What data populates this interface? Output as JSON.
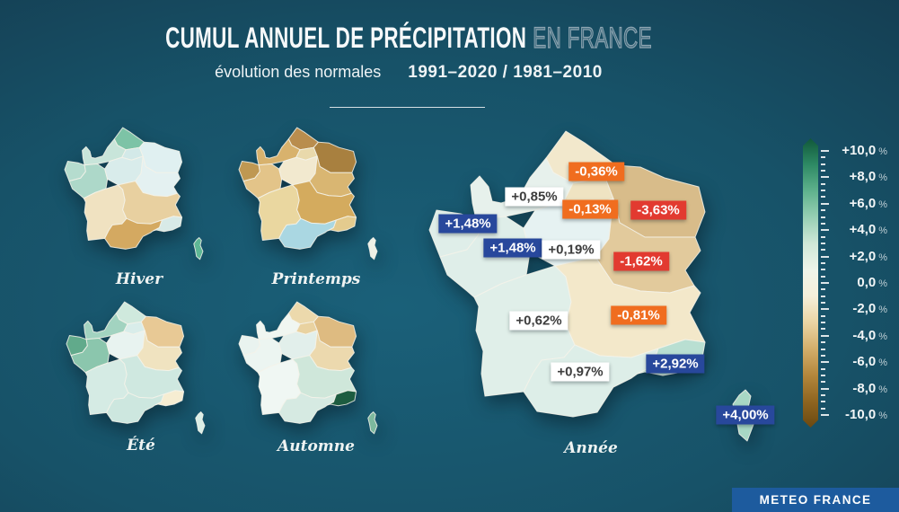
{
  "header": {
    "title_main": "CUMUL ANNUEL DE PRÉCIPITATION",
    "title_secondary": "EN FRANCE",
    "subtitle_label": "évolution des normales",
    "subtitle_years": "1991–2020 / 1981–2010"
  },
  "seasons": [
    {
      "id": "hiver",
      "label": "Hiver",
      "colors": {
        "hdf": "#7dc3a6",
        "normandie": "#c8e5da",
        "idf": "#d3e9e8",
        "grandest": "#e0f0f1",
        "bretagne": "#b5dcce",
        "pdll": "#add8c9",
        "cvl": "#d9eceb",
        "bfc": "#e4f1f1",
        "na": "#f0e2c1",
        "aura": "#e8d0a0",
        "occitanie": "#d4a961",
        "paca": "#d8eae7",
        "corse": "#5eb795"
      }
    },
    {
      "id": "printemps",
      "label": "Printemps",
      "colors": {
        "hdf": "#b98d4e",
        "normandie": "#d8b26d",
        "idf": "#e9d9ab",
        "grandest": "#a8803f",
        "bretagne": "#bf9852",
        "pdll": "#e3c489",
        "cvl": "#f2e9cf",
        "bfc": "#d9b672",
        "na": "#ead7a0",
        "aura": "#d4ab5e",
        "occitanie": "#aad7e2",
        "paca": "#e4cb8e",
        "corse": "#eef0e6"
      }
    },
    {
      "id": "ete",
      "label": "Été",
      "colors": {
        "hdf": "#cfe9dd",
        "normandie": "#a2d3c0",
        "idf": "#d9edea",
        "grandest": "#e8c995",
        "bretagne": "#61aa8b",
        "pdll": "#8bc6ad",
        "cvl": "#e8f3f0",
        "bfc": "#f0e3c0",
        "na": "#d5ebe4",
        "aura": "#cfe8e0",
        "occitanie": "#cde7df",
        "paca": "#f6edd2",
        "corse": "#dcefe7"
      }
    },
    {
      "id": "automne",
      "label": "Automne",
      "colors": {
        "hdf": "#ecd9ac",
        "normandie": "#f0f6f1",
        "idf": "#e9d2a0",
        "grandest": "#debb81",
        "bretagne": "#e9f3ef",
        "pdll": "#ecf5f1",
        "cvl": "#e2efeb",
        "bfc": "#ecd9ae",
        "na": "#f0f7f3",
        "aura": "#cfe7da",
        "occitanie": "#d6eae2",
        "paca": "#1d5c40",
        "corse": "#7db99e"
      }
    },
    {
      "id": "annee",
      "label": "Année",
      "colors": {
        "hdf": "#f2e8cc",
        "normandie": "#e7f1ec",
        "idf": "#efe3c2",
        "grandest": "#d8bc8a",
        "bretagne": "#dfeee9",
        "pdll": "#dfeee9",
        "cvl": "#e6f2f2",
        "bfc": "#e2ca9c",
        "na": "#e0efe9",
        "aura": "#f3e8ca",
        "occitanie": "#ddeee8",
        "paca": "#b9dfd2",
        "corse": "#a8d8c5"
      },
      "badges": [
        {
          "region": "hdf",
          "value": "-0,36%",
          "style": "orange"
        },
        {
          "region": "normandie",
          "value": "+0,85%",
          "style": "white"
        },
        {
          "region": "idf",
          "value": "-0,13%",
          "style": "orange"
        },
        {
          "region": "grandest",
          "value": "-3,63%",
          "style": "red"
        },
        {
          "region": "bretagne",
          "value": "+1,48%",
          "style": "blue"
        },
        {
          "region": "pdll",
          "value": "+1,48%",
          "style": "blue"
        },
        {
          "region": "cvl",
          "value": "+0,19%",
          "style": "white"
        },
        {
          "region": "bfc",
          "value": "-1,62%",
          "style": "red"
        },
        {
          "region": "na",
          "value": "+0,62%",
          "style": "white"
        },
        {
          "region": "aura",
          "value": "-0,81%",
          "style": "orange"
        },
        {
          "region": "occitanie",
          "value": "+0,97%",
          "style": "white"
        },
        {
          "region": "paca",
          "value": "+2,92%",
          "style": "blue"
        },
        {
          "region": "corse",
          "value": "+4,00%",
          "style": "blue"
        }
      ]
    }
  ],
  "badge_styles": {
    "orange": {
      "bg": "#f06d1f",
      "fg": "#ffffff"
    },
    "red": {
      "bg": "#e23a30",
      "fg": "#ffffff"
    },
    "blue": {
      "bg": "#28489c",
      "fg": "#ffffff"
    },
    "white": {
      "bg": "#ffffff",
      "fg": "#3d3d3d"
    }
  },
  "scale": {
    "labels": [
      "+10,0",
      "+8,0",
      "+6,0",
      "+4,0",
      "+2,0",
      "0,0",
      "-2,0",
      "-4,0",
      "-6,0",
      "-8,0",
      "-10,0"
    ],
    "unit": "%",
    "gradient": [
      "#11583a",
      "#2e8a64",
      "#5fb28d",
      "#97cfb4",
      "#cfe8d8",
      "#eef4ea",
      "#f5efda",
      "#ead5a4",
      "#d3ae6b",
      "#b4873c",
      "#8f6520",
      "#6b4911"
    ]
  },
  "footer": {
    "brand": "METEO FRANCE",
    "brand_bg": "#1d5b9e"
  }
}
